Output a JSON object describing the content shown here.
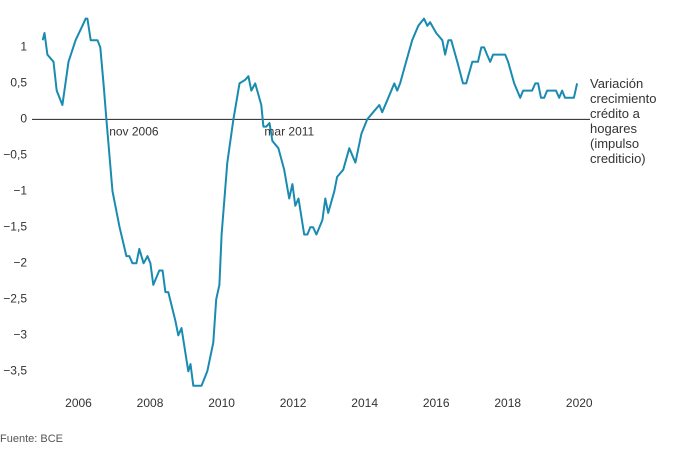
{
  "chart_data": {
    "type": "line",
    "series": [
      {
        "name": "Variación crecimiento crédito a hogares (impulso crediticio)",
        "color": "#1a8bb0",
        "x": [
          2005.0,
          2005.05,
          2005.13,
          2005.3,
          2005.39,
          2005.55,
          2005.72,
          2005.92,
          2006.11,
          2006.2,
          2006.25,
          2006.34,
          2006.53,
          2006.61,
          2006.7,
          2006.78,
          2006.95,
          2007.15,
          2007.34,
          2007.42,
          2007.51,
          2007.62,
          2007.7,
          2007.82,
          2007.93,
          2008.01,
          2008.09,
          2008.26,
          2008.35,
          2008.43,
          2008.51,
          2008.71,
          2008.79,
          2008.88,
          2009.07,
          2009.13,
          2009.21,
          2009.44,
          2009.6,
          2009.77,
          2009.85,
          2009.94,
          2010.0,
          2010.16,
          2010.33,
          2010.5,
          2010.66,
          2010.75,
          2010.83,
          2010.94,
          2011.11,
          2011.17,
          2011.25,
          2011.34,
          2011.42,
          2011.59,
          2011.75,
          2011.89,
          2011.98,
          2012.06,
          2012.15,
          2012.31,
          2012.4,
          2012.48,
          2012.56,
          2012.65,
          2012.82,
          2012.9,
          2012.98,
          2013.15,
          2013.23,
          2013.4,
          2013.57,
          2013.74,
          2013.91,
          2014.07,
          2014.24,
          2014.41,
          2014.49,
          2014.66,
          2014.83,
          2014.91,
          2014.99,
          2015.16,
          2015.33,
          2015.5,
          2015.66,
          2015.75,
          2015.83,
          2016.0,
          2016.17,
          2016.25,
          2016.34,
          2016.42,
          2016.59,
          2016.75,
          2016.84,
          2017.01,
          2017.17,
          2017.26,
          2017.34,
          2017.42,
          2017.51,
          2017.59,
          2017.93,
          2018.01,
          2018.18,
          2018.35,
          2018.43,
          2018.68,
          2018.77,
          2018.85,
          2018.93,
          2019.02,
          2019.1,
          2019.35,
          2019.44,
          2019.52,
          2019.6,
          2019.85,
          2019.94
        ],
        "values": [
          1.1,
          1.2,
          0.9,
          0.8,
          0.4,
          0.2,
          0.8,
          1.1,
          1.3,
          1.4,
          1.4,
          1.1,
          1.1,
          1.0,
          0.5,
          0.0,
          -1.0,
          -1.5,
          -1.9,
          -1.9,
          -2.0,
          -2.0,
          -1.8,
          -2.0,
          -1.9,
          -2.0,
          -2.3,
          -2.1,
          -2.1,
          -2.4,
          -2.4,
          -2.8,
          -3.0,
          -2.9,
          -3.5,
          -3.4,
          -3.7,
          -3.7,
          -3.5,
          -3.1,
          -2.5,
          -2.3,
          -1.6,
          -0.6,
          0.0,
          0.5,
          0.55,
          0.6,
          0.4,
          0.5,
          0.2,
          -0.1,
          -0.1,
          -0.05,
          -0.3,
          -0.4,
          -0.7,
          -1.1,
          -0.9,
          -1.2,
          -1.1,
          -1.6,
          -1.6,
          -1.5,
          -1.5,
          -1.6,
          -1.4,
          -1.1,
          -1.3,
          -1.0,
          -0.8,
          -0.7,
          -0.4,
          -0.6,
          -0.2,
          0.0,
          0.1,
          0.2,
          0.1,
          0.3,
          0.5,
          0.4,
          0.5,
          0.8,
          1.1,
          1.3,
          1.4,
          1.3,
          1.35,
          1.2,
          1.1,
          0.9,
          1.1,
          1.1,
          0.8,
          0.5,
          0.5,
          0.8,
          0.8,
          1.0,
          1.0,
          0.9,
          0.8,
          0.9,
          0.9,
          0.8,
          0.5,
          0.3,
          0.4,
          0.4,
          0.5,
          0.5,
          0.3,
          0.3,
          0.4,
          0.4,
          0.3,
          0.4,
          0.3,
          0.3,
          0.5
        ]
      }
    ],
    "xlim": [
      2004.7,
      2020.3
    ],
    "xticks": [
      2006,
      2008,
      2010,
      2012,
      2014,
      2016,
      2018,
      2020
    ],
    "ylim": [
      -3.76,
      1.45
    ],
    "yticks": [
      1,
      {
        "value": 0.5,
        "label": "0,5"
      },
      0,
      {
        "value": -0.5,
        "label": "−0,5"
      },
      {
        "value": -1,
        "label": "−1"
      },
      {
        "value": -1.5,
        "label": "−1,5"
      },
      {
        "value": -2,
        "label": "−2"
      },
      {
        "value": -2.5,
        "label": "−2,5"
      },
      {
        "value": -3,
        "label": "−3"
      },
      {
        "value": -3.5,
        "label": "−3,5"
      }
    ],
    "annotations": [
      {
        "text": "nov 2006",
        "x": 2006.83,
        "y": 0
      },
      {
        "text": "mar 2011",
        "x": 2011.17,
        "y": 0
      }
    ],
    "source": "Fuente: BCE"
  }
}
